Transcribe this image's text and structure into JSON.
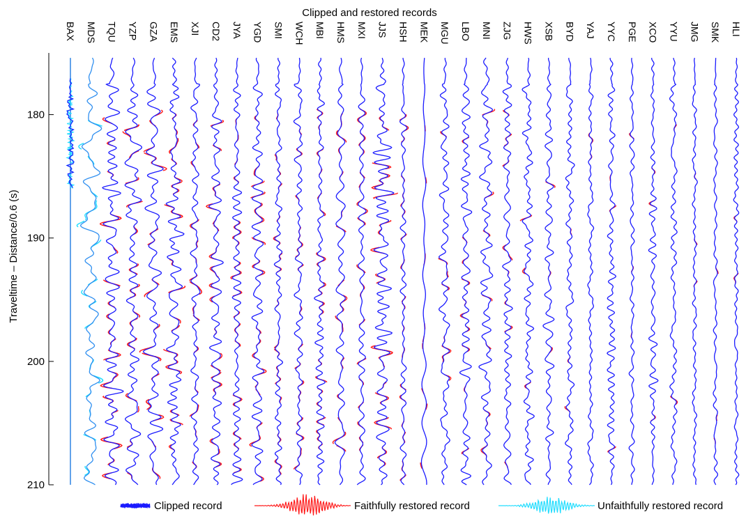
{
  "chart_data": {
    "type": "line",
    "title": "Clipped and restored records",
    "ylabel": "Traveltime – Distance/0.6 (s)",
    "xlabel": "",
    "ylim": [
      175,
      210
    ],
    "yticks": [
      180,
      190,
      200,
      210
    ],
    "y_reversed": true,
    "grid": false,
    "stations": [
      "BAX",
      "MDS",
      "TQU",
      "YZP",
      "GZA",
      "EMS",
      "XJI",
      "CD2",
      "JYA",
      "YGD",
      "SMI",
      "WCH",
      "MBI",
      "HMS",
      "MXI",
      "JJS",
      "HSH",
      "MEK",
      "MGU",
      "LBO",
      "MNI",
      "ZJG",
      "HWS",
      "XSB",
      "BYD",
      "YAJ",
      "YYC",
      "PGE",
      "XCO",
      "YYU",
      "JMG",
      "SMK",
      "HLI"
    ],
    "series": [
      {
        "name": "Clipped record",
        "color": "#1a1aff"
      },
      {
        "name": "Faithfully restored record",
        "color": "#ff1a1a"
      },
      {
        "name": "Unfaithfully restored record",
        "color": "#22ddff"
      }
    ],
    "trace_amplitude_relative": [
      1.0,
      0.9,
      0.7,
      0.6,
      0.6,
      0.6,
      0.5,
      0.6,
      0.6,
      0.5,
      0.3,
      0.35,
      0.4,
      0.4,
      0.35,
      0.8,
      0.3,
      0.2,
      0.4,
      0.5,
      0.5,
      0.35,
      0.4,
      0.35,
      0.35,
      0.25,
      0.4,
      0.25,
      0.3,
      0.3,
      0.25,
      0.2,
      0.2
    ],
    "legend_position": "bottom"
  },
  "colors": {
    "clipped": "#1a1aff",
    "faithful": "#ff1a1a",
    "unfaithful": "#22ddff",
    "bax_trace": "#1f7ae0",
    "mds_trace": "#2f8ff0"
  }
}
